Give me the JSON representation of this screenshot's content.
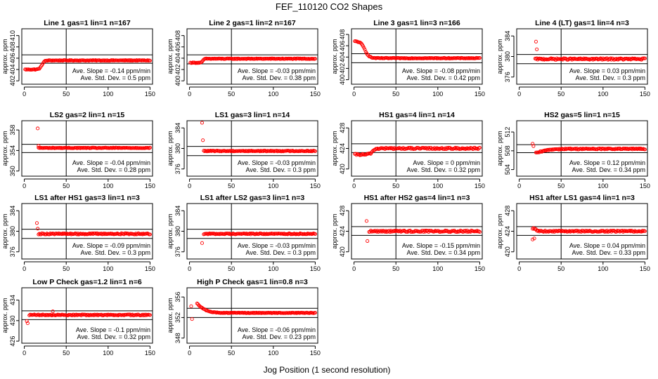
{
  "figure": {
    "title": "FEF_110120  CO2 Shapes",
    "xlabel": "Jog Position (1 second resolution)"
  },
  "chart_data": [
    {
      "type": "scatter",
      "title": "Line 1 gas=1 lin=1 n=167",
      "ylabel": "approx. ppm",
      "xlim": [
        -3,
        153
      ],
      "xticks": [
        0,
        50,
        100,
        150
      ],
      "ylim": [
        401.4,
        411.2
      ],
      "yticks": [
        402,
        404,
        406,
        408,
        410
      ],
      "ref_lines": [
        406.6,
        405.1
      ],
      "vline": 50,
      "shape": {
        "start": 1,
        "end": 150,
        "n": 150,
        "base": 405.6,
        "init": 404.0,
        "step_at": 21,
        "step_width": 6,
        "noise": 0.06
      },
      "slope_label": "Ave. Slope = ",
      "slope_value": "-0.14 ppm/min",
      "sd_label": "Ave. Std. Dev. = ",
      "sd_value": "0.5 ppm"
    },
    {
      "type": "scatter",
      "title": "Line 2 gas=1 lin=2 n=167",
      "ylabel": "approx. ppm",
      "xlim": [
        -3,
        153
      ],
      "xticks": [
        0,
        50,
        100,
        150
      ],
      "ylim": [
        399.4,
        409.2
      ],
      "yticks": [
        400,
        402,
        404,
        406,
        408
      ],
      "ref_lines": [
        404.6,
        403.0
      ],
      "vline": 50,
      "shape": {
        "start": 1,
        "end": 150,
        "n": 150,
        "base": 403.9,
        "init": 403.2,
        "step_at": 16,
        "step_width": 3,
        "noise": 0.06
      },
      "slope_label": "Ave. Slope = ",
      "slope_value": "-0.03 ppm/min",
      "sd_label": "Ave. Std. Dev. = ",
      "sd_value": "0.38 ppm"
    },
    {
      "type": "scatter",
      "title": "Line 3 gas=1 lin=3 n=166",
      "ylabel": "approx. ppm",
      "xlim": [
        -3,
        153
      ],
      "xticks": [
        0,
        50,
        100,
        150
      ],
      "ylim": [
        399.2,
        409.0
      ],
      "yticks": [
        400,
        402,
        404,
        406,
        408
      ],
      "ref_lines": [
        404.6,
        403.0
      ],
      "vline": 50,
      "shape": {
        "start": 1,
        "end": 150,
        "n": 150,
        "base": 403.8,
        "init": 406.8,
        "step_at": 13,
        "step_width": 10,
        "noise": 0.06
      },
      "slope_label": "Ave. Slope = ",
      "slope_value": "-0.08 ppm/min",
      "sd_label": "Ave. Std. Dev. = ",
      "sd_value": "0.42 ppm"
    },
    {
      "type": "scatter",
      "title": "Line 4 (LT) gas=1 lin=4 n=3",
      "ylabel": "approx. ppm",
      "xlim": [
        -3,
        153
      ],
      "xticks": [
        0,
        50,
        100,
        150
      ],
      "ylim": [
        374.6,
        385.4
      ],
      "yticks": [
        376,
        380,
        384
      ],
      "ref_lines": [
        380.4,
        378.6
      ],
      "vline": 50,
      "shape": {
        "start": 19,
        "end": 150,
        "n": 132,
        "base": 379.5,
        "init": 379.5,
        "step_at": 0,
        "step_width": 1,
        "noise": 0.15,
        "outliers": [
          [
            20,
            382.9
          ],
          [
            21,
            381.4
          ]
        ]
      },
      "slope_label": "Ave. Slope = ",
      "slope_value": "0.03 ppm/min",
      "sd_label": "Ave. Std. Dev. = ",
      "sd_value": "0.3 ppm"
    },
    {
      "type": "scatter",
      "title": "LS2 gas=2 lin=1 n=15",
      "ylabel": "approx. ppm",
      "xlim": [
        -3,
        153
      ],
      "xticks": [
        0,
        50,
        100,
        150
      ],
      "ylim": [
        349.0,
        359.8
      ],
      "yticks": [
        350,
        354,
        358
      ],
      "ref_lines": [
        355.2,
        353.6
      ],
      "vline": 50,
      "shape": {
        "start": 17,
        "end": 150,
        "n": 134,
        "base": 354.5,
        "init": 354.5,
        "step_at": 0,
        "step_width": 1,
        "noise": 0.06,
        "outliers": [
          [
            16,
            358.3
          ],
          [
            17,
            354.9
          ]
        ]
      },
      "slope_label": "Ave. Slope = ",
      "slope_value": "-0.04 ppm/min",
      "sd_label": "Ave. Std. Dev. = ",
      "sd_value": "0.28 ppm"
    },
    {
      "type": "scatter",
      "title": "LS1 gas=3 lin=1 n=14",
      "ylabel": "approx. ppm",
      "xlim": [
        -3,
        153
      ],
      "xticks": [
        0,
        50,
        100,
        150
      ],
      "ylim": [
        374.6,
        385.4
      ],
      "yticks": [
        376,
        380,
        384
      ],
      "ref_lines": [
        380.4,
        378.6
      ],
      "vline": 50,
      "shape": {
        "start": 17,
        "end": 150,
        "n": 134,
        "base": 379.5,
        "init": 379.5,
        "step_at": 0,
        "step_width": 1,
        "noise": 0.08,
        "outliers": [
          [
            15,
            385.0
          ],
          [
            16,
            381.6
          ]
        ]
      },
      "slope_label": "Ave. Slope = ",
      "slope_value": "-0.03 ppm/min",
      "sd_label": "Ave. Std. Dev. = ",
      "sd_value": "0.3 ppm"
    },
    {
      "type": "scatter",
      "title": "HS1 gas=4 lin=1 n=14",
      "ylabel": "approx. ppm",
      "xlim": [
        -3,
        153
      ],
      "xticks": [
        0,
        50,
        100,
        150
      ],
      "ylim": [
        418.6,
        429.4
      ],
      "yticks": [
        420,
        424,
        428
      ],
      "ref_lines": [
        424.9,
        423.2
      ],
      "vline": 50,
      "shape": {
        "start": 1,
        "end": 150,
        "n": 150,
        "base": 424.0,
        "init": 422.8,
        "step_at": 22,
        "step_width": 7,
        "noise": 0.15
      },
      "slope_label": "Ave. Slope = ",
      "slope_value": "0 ppm/min",
      "sd_label": "Ave. Std. Dev. = ",
      "sd_value": "0.32 ppm"
    },
    {
      "type": "scatter",
      "title": "HS2 gas=5 lin=1 n=15",
      "ylabel": "approx. ppm",
      "xlim": [
        -3,
        153
      ],
      "xticks": [
        0,
        50,
        100,
        150
      ],
      "ylim": [
        502.6,
        514.4
      ],
      "yticks": [
        504,
        508,
        512
      ],
      "ref_lines": [
        509.3,
        507.6
      ],
      "vline": 50,
      "shape": {
        "start": 20,
        "end": 150,
        "n": 131,
        "base": 508.4,
        "init": 507.2,
        "step_at": 26,
        "step_width": 24,
        "noise": 0.12,
        "outliers": [
          [
            16,
            509.5
          ],
          [
            17,
            509.0
          ]
        ]
      },
      "slope_label": "Ave. Slope = ",
      "slope_value": "0.12 ppm/min",
      "sd_label": "Ave. Std. Dev. = ",
      "sd_value": "0.34 ppm"
    },
    {
      "type": "scatter",
      "title": "LS1 after HS1 gas=3 lin=1 n=3",
      "ylabel": "approx. ppm",
      "xlim": [
        -3,
        153
      ],
      "xticks": [
        0,
        50,
        100,
        150
      ],
      "ylim": [
        374.6,
        385.4
      ],
      "yticks": [
        376,
        380,
        384
      ],
      "ref_lines": [
        380.4,
        378.6
      ],
      "vline": 50,
      "shape": {
        "start": 17,
        "end": 150,
        "n": 134,
        "base": 379.5,
        "init": 379.5,
        "step_at": 0,
        "step_width": 1,
        "noise": 0.12,
        "outliers": [
          [
            15,
            381.6
          ],
          [
            16,
            380.5
          ]
        ]
      },
      "slope_label": "Ave. Slope = ",
      "slope_value": "-0.09 ppm/min",
      "sd_label": "Ave. Std. Dev. = ",
      "sd_value": "0.3 ppm"
    },
    {
      "type": "scatter",
      "title": "LS1 after LS2 gas=3 lin=1 n=3",
      "ylabel": "approx. ppm",
      "xlim": [
        -3,
        153
      ],
      "xticks": [
        0,
        50,
        100,
        150
      ],
      "ylim": [
        374.6,
        385.4
      ],
      "yticks": [
        376,
        380,
        384
      ],
      "ref_lines": [
        380.4,
        378.6
      ],
      "vline": 50,
      "shape": {
        "start": 17,
        "end": 150,
        "n": 134,
        "base": 379.5,
        "init": 379.5,
        "step_at": 0,
        "step_width": 1,
        "noise": 0.1,
        "outliers": [
          [
            15,
            377.7
          ]
        ]
      },
      "slope_label": "Ave. Slope = ",
      "slope_value": "-0.03 ppm/min",
      "sd_label": "Ave. Std. Dev. = ",
      "sd_value": "0.3 ppm"
    },
    {
      "type": "scatter",
      "title": "HS1 after HS2 gas=4 lin=1 n=3",
      "ylabel": "approx. ppm",
      "xlim": [
        -3,
        153
      ],
      "xticks": [
        0,
        50,
        100,
        150
      ],
      "ylim": [
        418.6,
        429.4
      ],
      "yticks": [
        420,
        424,
        428
      ],
      "ref_lines": [
        424.9,
        423.2
      ],
      "vline": 50,
      "shape": {
        "start": 18,
        "end": 150,
        "n": 133,
        "base": 424.0,
        "init": 424.0,
        "step_at": 0,
        "step_width": 1,
        "noise": 0.15,
        "outliers": [
          [
            15,
            426.0
          ],
          [
            16,
            422.1
          ]
        ]
      },
      "slope_label": "Ave. Slope = ",
      "slope_value": "-0.15 ppm/min",
      "sd_label": "Ave. Std. Dev. = ",
      "sd_value": "0.34 ppm"
    },
    {
      "type": "scatter",
      "title": "HS1 after LS1 gas=4 lin=1 n=3",
      "ylabel": "approx. ppm",
      "xlim": [
        -3,
        153
      ],
      "xticks": [
        0,
        50,
        100,
        150
      ],
      "ylim": [
        418.6,
        429.4
      ],
      "yticks": [
        420,
        424,
        428
      ],
      "ref_lines": [
        424.9,
        423.2
      ],
      "vline": 50,
      "shape": {
        "start": 16,
        "end": 150,
        "n": 135,
        "base": 424.0,
        "init": 424.6,
        "step_at": 20,
        "step_width": 6,
        "noise": 0.12,
        "outliers": [
          [
            16,
            422.4
          ],
          [
            18,
            422.6
          ]
        ]
      },
      "slope_label": "Ave. Slope = ",
      "slope_value": "0.04 ppm/min",
      "sd_label": "Ave. Std. Dev. = ",
      "sd_value": "0.33 ppm"
    },
    {
      "type": "scatter",
      "title": "Low P Check gas=1.2 lin=1 n=6",
      "ylabel": "approx. ppm",
      "xlim": [
        -3,
        153
      ],
      "xticks": [
        0,
        50,
        100,
        150
      ],
      "ylim": [
        425.6,
        436.4
      ],
      "yticks": [
        426,
        430,
        434
      ],
      "ref_lines": [
        431.9,
        430.2
      ],
      "vline": 50,
      "shape": {
        "start": 6,
        "end": 150,
        "n": 145,
        "base": 431.1,
        "init": 431.1,
        "step_at": 0,
        "step_width": 1,
        "noise": 0.1,
        "outliers": [
          [
            3,
            429.9
          ],
          [
            4,
            429.5
          ],
          [
            34,
            431.8
          ]
        ]
      },
      "slope_label": "Ave. Slope = ",
      "slope_value": "-0.1 ppm/min",
      "sd_label": "Ave. Std. Dev. = ",
      "sd_value": "0.32 ppm"
    },
    {
      "type": "scatter",
      "title": "High P Check gas=1 lin=0.8 n=3",
      "ylabel": "approx. ppm",
      "xlim": [
        -3,
        153
      ],
      "xticks": [
        0,
        50,
        100,
        150
      ],
      "ylim": [
        347.0,
        357.8
      ],
      "yticks": [
        348,
        352,
        356
      ],
      "ref_lines": [
        353.8,
        352.0
      ],
      "vline": 50,
      "shape": {
        "start": 9,
        "end": 150,
        "n": 142,
        "base": 352.9,
        "init": 357.0,
        "step_at": 8,
        "step_width": 24,
        "noise": 0.06,
        "outliers": [
          [
            2,
            354.2
          ],
          [
            3,
            351.7
          ]
        ]
      },
      "slope_label": "Ave. Slope = ",
      "slope_value": "-0.06 ppm/min",
      "sd_label": "Ave. Std. Dev. = ",
      "sd_value": "0.23 ppm"
    }
  ]
}
